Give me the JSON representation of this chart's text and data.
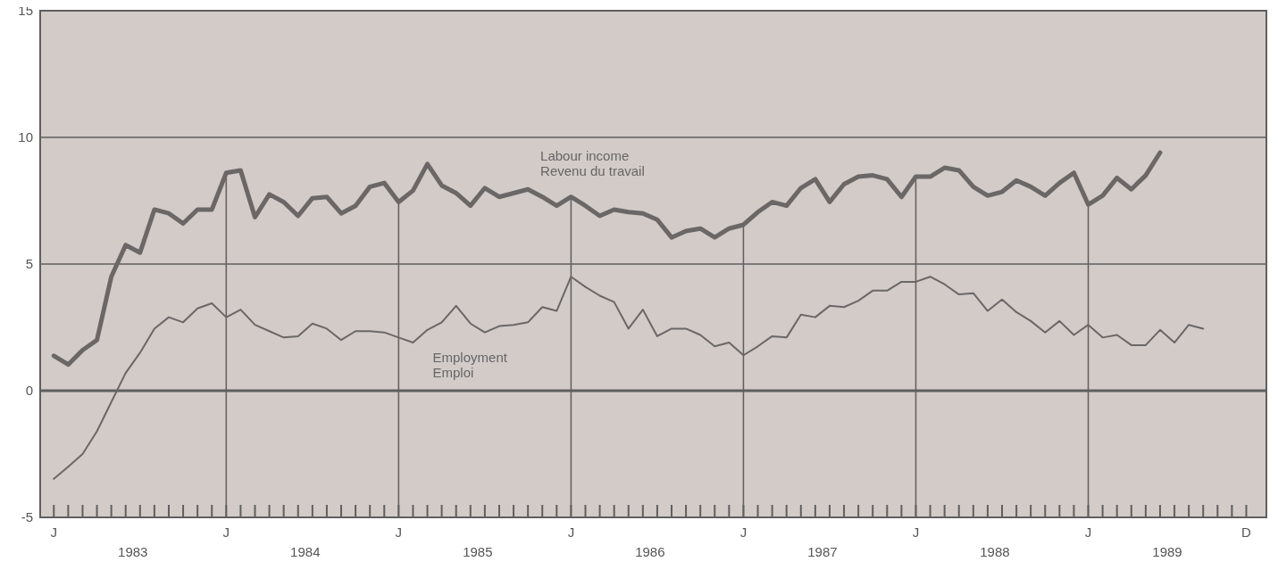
{
  "chart_data": {
    "type": "line",
    "grid": true,
    "ylim": [
      -5,
      15
    ],
    "yticks": [
      -5,
      0,
      5,
      10,
      15
    ],
    "categories": [
      "J",
      null,
      null,
      null,
      null,
      null,
      null,
      null,
      null,
      null,
      null,
      null,
      "J",
      null,
      null,
      null,
      null,
      null,
      null,
      null,
      null,
      null,
      null,
      null,
      "J",
      null,
      null,
      null,
      null,
      null,
      null,
      null,
      null,
      null,
      null,
      null,
      "J",
      null,
      null,
      null,
      null,
      null,
      null,
      null,
      null,
      null,
      null,
      null,
      "J",
      null,
      null,
      null,
      null,
      null,
      null,
      null,
      null,
      null,
      null,
      null,
      "J",
      null,
      null,
      null,
      null,
      null,
      null,
      null,
      null,
      null,
      null,
      null,
      "J",
      null,
      null,
      null,
      null,
      null,
      null,
      null,
      null,
      null,
      null,
      "D"
    ],
    "annotations": [
      "1983",
      "1984",
      "1985",
      "1986",
      "1987",
      "1988",
      "1989"
    ],
    "series": [
      {
        "name": "Labour income\nRevenu du travail",
        "color": "#6b6767",
        "values": [
          1.38,
          1.03,
          1.6,
          2.0,
          4.5,
          5.75,
          5.45,
          7.15,
          7.0,
          6.6,
          7.15,
          7.15,
          8.6,
          8.7,
          6.85,
          7.75,
          7.45,
          6.9,
          7.6,
          7.65,
          7.0,
          7.3,
          8.05,
          8.2,
          7.45,
          7.9,
          8.95,
          8.1,
          7.8,
          7.3,
          8.0,
          7.65,
          7.8,
          7.95,
          7.65,
          7.3,
          7.65,
          7.3,
          6.9,
          7.15,
          7.05,
          7.0,
          6.75,
          6.05,
          6.3,
          6.4,
          6.05,
          6.4,
          6.55,
          7.05,
          7.45,
          7.3,
          8.0,
          8.35,
          7.45,
          8.15,
          8.45,
          8.5,
          8.35,
          7.65,
          8.45,
          8.45,
          8.8,
          8.7,
          8.05,
          7.7,
          7.85,
          8.3,
          8.05,
          7.7,
          8.2,
          8.6,
          7.35,
          7.7,
          8.4,
          7.95,
          8.5,
          9.4,
          null,
          null,
          null,
          null,
          null,
          null
        ]
      },
      {
        "name": "Employment\nEmploi",
        "color": "#6b6767",
        "values": [
          -3.48,
          -3.0,
          -2.5,
          -1.6,
          -0.45,
          0.7,
          1.5,
          2.45,
          2.9,
          2.7,
          3.25,
          3.45,
          2.9,
          3.2,
          2.6,
          2.35,
          2.1,
          2.15,
          2.65,
          2.45,
          2.0,
          2.35,
          2.35,
          2.3,
          2.1,
          1.9,
          2.4,
          2.7,
          3.35,
          2.65,
          2.3,
          2.55,
          2.6,
          2.7,
          3.3,
          3.15,
          4.5,
          4.1,
          3.75,
          3.5,
          2.45,
          3.2,
          2.15,
          2.45,
          2.45,
          2.2,
          1.75,
          1.9,
          1.4,
          1.75,
          2.15,
          2.1,
          3.0,
          2.9,
          3.35,
          3.3,
          3.55,
          3.95,
          3.95,
          4.3,
          4.3,
          4.5,
          4.2,
          3.8,
          3.85,
          3.15,
          3.6,
          3.1,
          2.75,
          2.3,
          2.75,
          2.2,
          2.6,
          2.1,
          2.2,
          1.8,
          1.8,
          2.4,
          1.9,
          2.6,
          2.45,
          null,
          null,
          null
        ]
      }
    ]
  }
}
